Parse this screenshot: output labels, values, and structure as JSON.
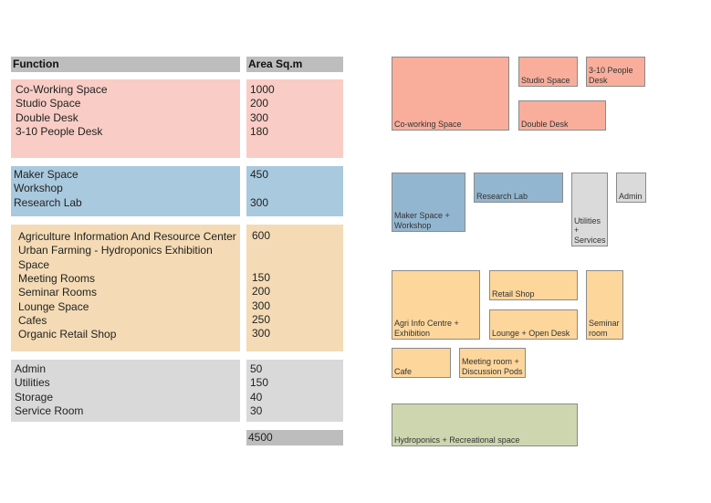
{
  "table": {
    "header_function": "Function",
    "header_area": "Area Sq.m",
    "groups": [
      {
        "functions": [
          "Co-Working Space",
          "Studio Space",
          "Double Desk",
          "3-10 People Desk"
        ],
        "areas": [
          "1000",
          "200",
          "300",
          "180"
        ]
      },
      {
        "functions": [
          "Maker Space",
          "Workshop",
          "Research Lab"
        ],
        "areas": [
          "450",
          "",
          "300"
        ]
      },
      {
        "functions": [
          "Agriculture Information And Resource Center",
          "Urban Farming - Hydroponics Exhibition",
          "Space",
          "Meeting Rooms",
          "Seminar Rooms",
          "Lounge Space",
          "Cafes",
          "Organic Retail Shop"
        ],
        "areas": [
          "600",
          "",
          "",
          "150",
          "200",
          "300",
          "250",
          "300"
        ]
      },
      {
        "functions": [
          "Admin",
          "Utilities",
          "Storage",
          "Service Room"
        ],
        "areas": [
          "50",
          "150",
          "40",
          "30"
        ]
      }
    ],
    "total": "4500"
  },
  "diagram": {
    "boxes": [
      {
        "label": "Co-working Space",
        "color": "#f8ae9b"
      },
      {
        "label": "Studio Space",
        "color": "#f8ae9b"
      },
      {
        "label": "3-10 People Desk",
        "color": "#f8ae9b"
      },
      {
        "label": "Double Desk",
        "color": "#f8ae9b"
      },
      {
        "label": "Maker Space + Workshop",
        "color": "#93b6d0"
      },
      {
        "label": "Research Lab",
        "color": "#93b6d0"
      },
      {
        "label": "Utilities + Services",
        "color": "#dadada"
      },
      {
        "label": "Admin",
        "color": "#dadada"
      },
      {
        "label": "Agri Info Centre + Exhibition",
        "color": "#fdd69c"
      },
      {
        "label": "Retail Shop",
        "color": "#fdd69c"
      },
      {
        "label": "Lounge + Open Desk",
        "color": "#fdd69c"
      },
      {
        "label": "Seminar room",
        "color": "#fdd69c"
      },
      {
        "label": "Cafe",
        "color": "#fdd69c"
      },
      {
        "label": "Meeting room + Discussion Pods",
        "color": "#fdd69c"
      },
      {
        "label": "Hydroponics + Recreational space",
        "color": "#cdd6af"
      }
    ]
  }
}
